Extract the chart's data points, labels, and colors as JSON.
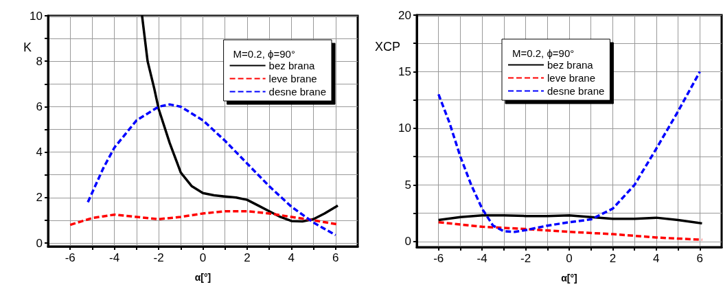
{
  "chart_data": [
    {
      "type": "line",
      "xlabel": "α[°]",
      "ylabel": "K",
      "legend_title": "M=0.2, ϕ=90°",
      "legend": "top right",
      "grid": true,
      "marker": "none",
      "xlim": [
        -7,
        7
      ],
      "ylim": [
        -0.15,
        10
      ],
      "xticks": [
        -6,
        {
          "value": -5,
          "label": null
        },
        -4,
        {
          "value": -3,
          "label": null
        },
        -2,
        {
          "value": -1,
          "label": null
        },
        0,
        {
          "value": 1,
          "label": null
        },
        2,
        {
          "value": 3,
          "label": null
        },
        4,
        {
          "value": 5,
          "label": null
        },
        6
      ],
      "yticks": [
        0,
        {
          "value": 1,
          "label": null
        },
        2,
        {
          "value": 3,
          "label": null
        },
        4,
        {
          "value": 5,
          "label": null
        },
        6,
        {
          "value": 7,
          "label": null
        },
        8,
        {
          "value": 9,
          "label": null
        },
        10
      ],
      "series": [
        {
          "name": "bez brana",
          "color": "#000000",
          "line_style": "solid",
          "x": [
            -2.75,
            -2.5,
            -2.2,
            -2,
            -1.5,
            -1,
            -0.5,
            0,
            0.5,
            1,
            1.5,
            2,
            2.5,
            3,
            3.5,
            4,
            4.5,
            5,
            5.5,
            6.1
          ],
          "values": [
            10,
            8.0,
            6.8,
            5.9,
            4.4,
            3.1,
            2.5,
            2.2,
            2.1,
            2.05,
            2.0,
            1.9,
            1.65,
            1.4,
            1.15,
            0.97,
            0.95,
            1.05,
            1.3,
            1.65
          ]
        },
        {
          "name": "leve brane",
          "color": "#ff0000",
          "line_style": "dashed",
          "x": [
            -6,
            -5,
            -4,
            -3,
            -2,
            -1,
            0,
            1,
            2,
            3,
            4,
            5,
            6.1
          ],
          "values": [
            0.8,
            1.1,
            1.25,
            1.15,
            1.05,
            1.15,
            1.3,
            1.4,
            1.4,
            1.3,
            1.15,
            1.0,
            0.82
          ]
        },
        {
          "name": "desne brane",
          "color": "#0000ff",
          "line_style": "dashed",
          "x": [
            -5.2,
            -4.5,
            -4,
            -3,
            -2,
            -1.5,
            -1,
            0,
            1,
            2,
            3,
            4,
            5,
            6
          ],
          "values": [
            1.8,
            3.3,
            4.2,
            5.4,
            6.0,
            6.1,
            6.0,
            5.4,
            4.5,
            3.5,
            2.5,
            1.6,
            0.9,
            0.35
          ]
        }
      ]
    },
    {
      "type": "line",
      "xlabel": "α[°]",
      "ylabel": "XCP",
      "legend_title": "M=0.2, ϕ=90°",
      "legend": "top",
      "grid": true,
      "marker": "none",
      "xlim": [
        -7,
        7
      ],
      "ylim": [
        -0.5,
        20
      ],
      "xticks": [
        -6,
        {
          "value": -5,
          "label": null
        },
        -4,
        {
          "value": -3,
          "label": null
        },
        -2,
        {
          "value": -1,
          "label": null
        },
        0,
        {
          "value": 1,
          "label": null
        },
        2,
        {
          "value": 3,
          "label": null
        },
        4,
        {
          "value": 5,
          "label": null
        },
        6
      ],
      "yticks": [
        0,
        {
          "value": 2.5,
          "label": null
        },
        5,
        {
          "value": 7.5,
          "label": null
        },
        10,
        {
          "value": 12.5,
          "label": null
        },
        15,
        {
          "value": 17.5,
          "label": null
        },
        20
      ],
      "series": [
        {
          "name": "bez brana",
          "color": "#000000",
          "line_style": "solid",
          "x": [
            -6,
            -5,
            -4,
            -3,
            -2,
            -1,
            0,
            1,
            2,
            3,
            4,
            5,
            6.1
          ],
          "values": [
            1.9,
            2.15,
            2.3,
            2.3,
            2.25,
            2.25,
            2.3,
            2.15,
            2.0,
            2.0,
            2.1,
            1.9,
            1.6
          ]
        },
        {
          "name": "leve brane",
          "color": "#ff0000",
          "line_style": "dashed",
          "x": [
            -6,
            -4,
            -2,
            0,
            2,
            4,
            6.1
          ],
          "values": [
            1.7,
            1.3,
            1.1,
            0.85,
            0.65,
            0.35,
            0.15
          ]
        },
        {
          "name": "desne brane",
          "color": "#0000ff",
          "line_style": "dashed",
          "x": [
            -6,
            -5.5,
            -5,
            -4.5,
            -4,
            -3.5,
            -3,
            -2.5,
            -2,
            -1,
            0,
            1,
            2,
            3,
            4,
            5,
            6
          ],
          "values": [
            13,
            10.5,
            7.5,
            5.0,
            2.9,
            1.4,
            0.9,
            0.85,
            1.0,
            1.4,
            1.7,
            1.95,
            2.9,
            5.0,
            8.2,
            11.5,
            15
          ]
        }
      ]
    }
  ]
}
